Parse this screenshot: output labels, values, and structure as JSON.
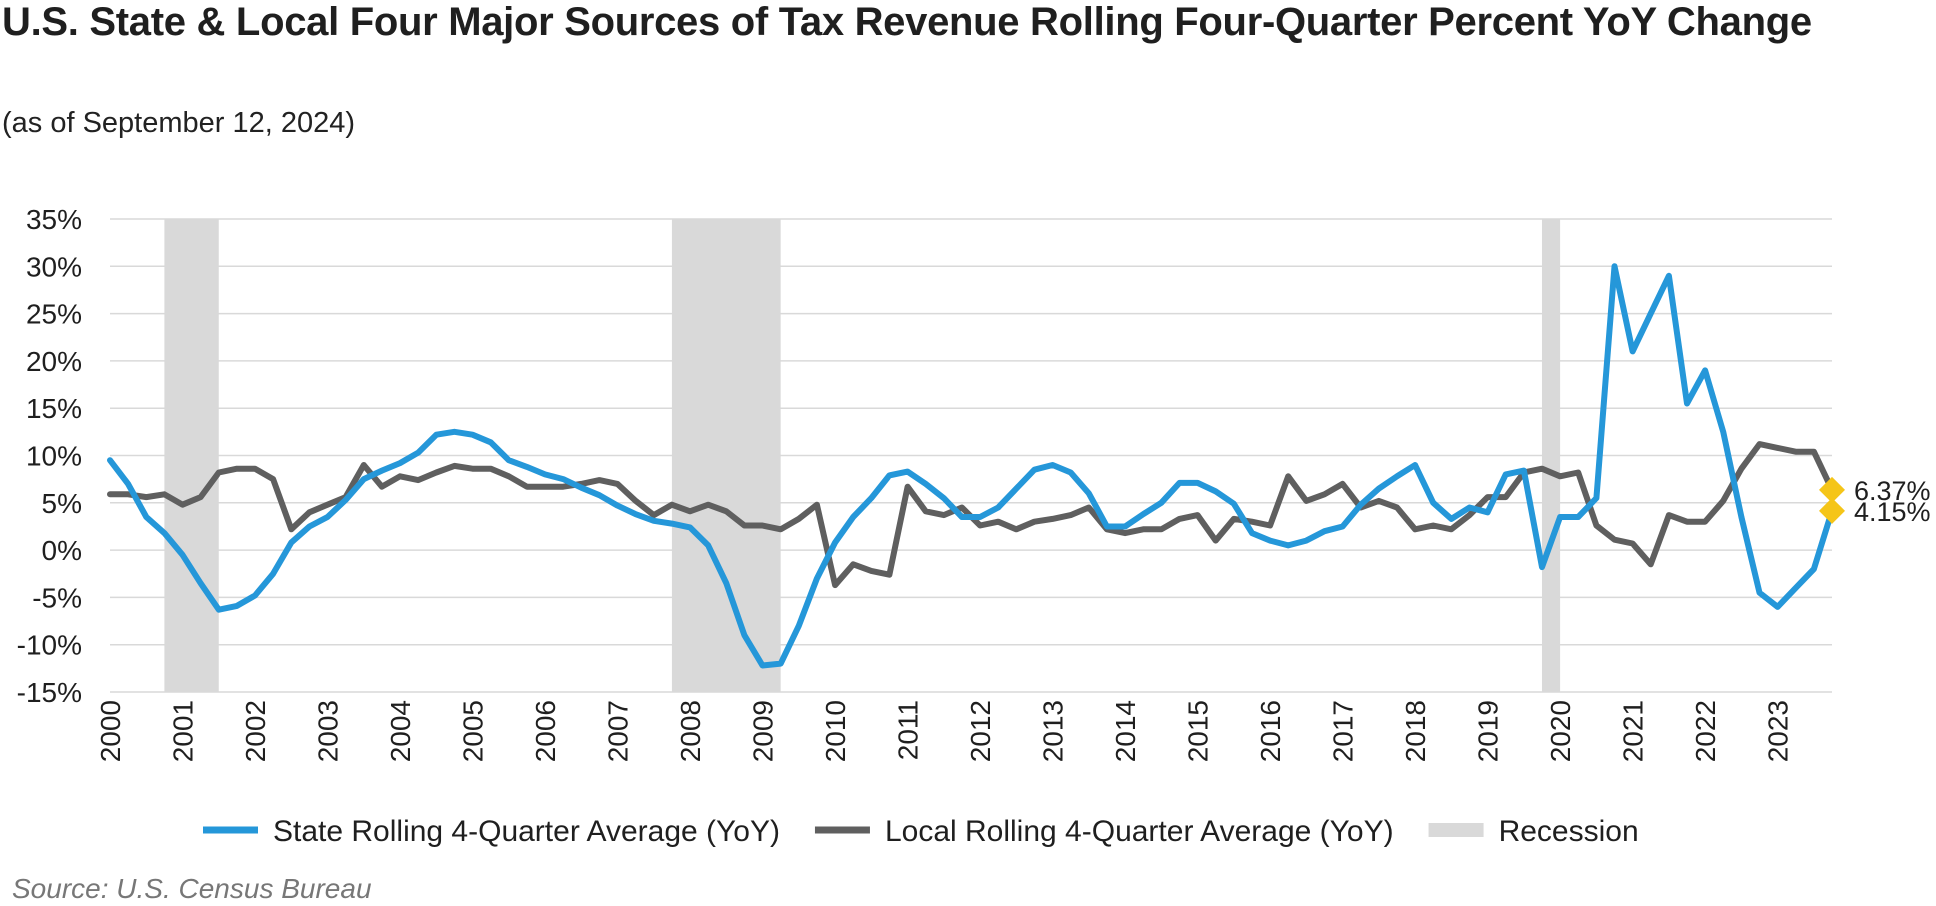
{
  "title": "U.S. State & Local Four Major Sources of Tax Revenue Rolling Four-Quarter Percent YoY Change",
  "subtitle": "(as of September 12, 2024)",
  "source": "Source: U.S. Census Bureau",
  "colors": {
    "state": "#2597d9",
    "local": "#5f5f5f",
    "recession": "#d9d9d9",
    "marker": "#f5c518",
    "grid": "#d9d9d9"
  },
  "chart_data": {
    "type": "line",
    "x_axis_type": "year",
    "xlim": [
      2000,
      2023.75
    ],
    "ylim": [
      -15,
      35
    ],
    "y_ticks": [
      35,
      30,
      25,
      20,
      15,
      10,
      5,
      0,
      -5,
      -10,
      -15
    ],
    "y_tick_labels": [
      "35%",
      "30%",
      "25%",
      "20%",
      "15%",
      "10%",
      "5%",
      "0%",
      "-5%",
      "-10%",
      "-15%"
    ],
    "x_tick_labels": [
      "2000",
      "2001",
      "2002",
      "2003",
      "2004",
      "2005",
      "2006",
      "2007",
      "2008",
      "2009",
      "2010",
      "2011",
      "2012",
      "2013",
      "2014",
      "2015",
      "2016",
      "2017",
      "2018",
      "2019",
      "2020",
      "2021",
      "2022",
      "2023"
    ],
    "grid": true,
    "legend_position": "bottom",
    "recessions": [
      {
        "start": 2000.75,
        "end": 2001.5
      },
      {
        "start": 2007.75,
        "end": 2009.25
      },
      {
        "start": 2019.75,
        "end": 2020.0
      }
    ],
    "series": [
      {
        "name": "State Rolling 4-Quarter Average (YoY)",
        "color": "#2597d9",
        "points": [
          [
            2000.0,
            9.5
          ],
          [
            2000.25,
            7.0
          ],
          [
            2000.5,
            3.5
          ],
          [
            2000.75,
            1.8
          ],
          [
            2001.0,
            -0.5
          ],
          [
            2001.25,
            -3.5
          ],
          [
            2001.5,
            -6.3
          ],
          [
            2001.75,
            -5.9
          ],
          [
            2002.0,
            -4.8
          ],
          [
            2002.25,
            -2.5
          ],
          [
            2002.5,
            0.8
          ],
          [
            2002.75,
            2.5
          ],
          [
            2003.0,
            3.5
          ],
          [
            2003.25,
            5.3
          ],
          [
            2003.5,
            7.5
          ],
          [
            2003.75,
            8.4
          ],
          [
            2004.0,
            9.2
          ],
          [
            2004.25,
            10.3
          ],
          [
            2004.5,
            12.2
          ],
          [
            2004.75,
            12.5
          ],
          [
            2005.0,
            12.2
          ],
          [
            2005.25,
            11.4
          ],
          [
            2005.5,
            9.5
          ],
          [
            2005.75,
            8.8
          ],
          [
            2006.0,
            8.0
          ],
          [
            2006.25,
            7.5
          ],
          [
            2006.5,
            6.6
          ],
          [
            2006.75,
            5.8
          ],
          [
            2007.0,
            4.7
          ],
          [
            2007.25,
            3.8
          ],
          [
            2007.5,
            3.1
          ],
          [
            2007.75,
            2.8
          ],
          [
            2008.0,
            2.4
          ],
          [
            2008.25,
            0.5
          ],
          [
            2008.5,
            -3.5
          ],
          [
            2008.75,
            -9.0
          ],
          [
            2009.0,
            -12.2
          ],
          [
            2009.25,
            -12.0
          ],
          [
            2009.5,
            -8.0
          ],
          [
            2009.75,
            -3.0
          ],
          [
            2010.0,
            0.8
          ],
          [
            2010.25,
            3.5
          ],
          [
            2010.5,
            5.5
          ],
          [
            2010.75,
            7.9
          ],
          [
            2011.0,
            8.3
          ],
          [
            2011.25,
            7.0
          ],
          [
            2011.5,
            5.5
          ],
          [
            2011.75,
            3.5
          ],
          [
            2012.0,
            3.5
          ],
          [
            2012.25,
            4.5
          ],
          [
            2012.5,
            6.5
          ],
          [
            2012.75,
            8.5
          ],
          [
            2013.0,
            9.0
          ],
          [
            2013.25,
            8.2
          ],
          [
            2013.5,
            6.0
          ],
          [
            2013.75,
            2.5
          ],
          [
            2014.0,
            2.5
          ],
          [
            2014.25,
            3.8
          ],
          [
            2014.5,
            5.0
          ],
          [
            2014.75,
            7.1
          ],
          [
            2015.0,
            7.1
          ],
          [
            2015.25,
            6.2
          ],
          [
            2015.5,
            4.9
          ],
          [
            2015.75,
            1.8
          ],
          [
            2016.0,
            1.0
          ],
          [
            2016.25,
            0.5
          ],
          [
            2016.5,
            1.0
          ],
          [
            2016.75,
            2.0
          ],
          [
            2017.0,
            2.5
          ],
          [
            2017.25,
            4.8
          ],
          [
            2017.5,
            6.5
          ],
          [
            2017.75,
            7.8
          ],
          [
            2018.0,
            9.0
          ],
          [
            2018.25,
            5.0
          ],
          [
            2018.5,
            3.3
          ],
          [
            2018.75,
            4.5
          ],
          [
            2019.0,
            4.0
          ],
          [
            2019.25,
            8.0
          ],
          [
            2019.5,
            8.4
          ],
          [
            2019.75,
            -1.8
          ],
          [
            2020.0,
            3.5
          ],
          [
            2020.25,
            3.5
          ],
          [
            2020.5,
            5.5
          ],
          [
            2020.75,
            30.0
          ],
          [
            2021.0,
            21.0
          ],
          [
            2021.25,
            25.0
          ],
          [
            2021.5,
            29.0
          ],
          [
            2021.75,
            15.5
          ],
          [
            2022.0,
            19.0
          ],
          [
            2022.25,
            12.5
          ],
          [
            2022.5,
            3.5
          ],
          [
            2022.75,
            -4.5
          ],
          [
            2023.0,
            -6.0
          ],
          [
            2023.25,
            -4.0
          ],
          [
            2023.5,
            -2.0
          ],
          [
            2023.75,
            4.15
          ]
        ],
        "end_label": "4.15%"
      },
      {
        "name": "Local Rolling 4-Quarter Average (YoY)",
        "color": "#5f5f5f",
        "points": [
          [
            2000.0,
            5.9
          ],
          [
            2000.25,
            5.9
          ],
          [
            2000.5,
            5.6
          ],
          [
            2000.75,
            5.9
          ],
          [
            2001.0,
            4.8
          ],
          [
            2001.25,
            5.6
          ],
          [
            2001.5,
            8.2
          ],
          [
            2001.75,
            8.6
          ],
          [
            2002.0,
            8.6
          ],
          [
            2002.25,
            7.5
          ],
          [
            2002.5,
            2.2
          ],
          [
            2002.75,
            4.0
          ],
          [
            2003.0,
            4.8
          ],
          [
            2003.25,
            5.6
          ],
          [
            2003.5,
            9.0
          ],
          [
            2003.75,
            6.7
          ],
          [
            2004.0,
            7.8
          ],
          [
            2004.25,
            7.4
          ],
          [
            2004.5,
            8.2
          ],
          [
            2004.75,
            8.9
          ],
          [
            2005.0,
            8.6
          ],
          [
            2005.25,
            8.6
          ],
          [
            2005.5,
            7.8
          ],
          [
            2005.75,
            6.7
          ],
          [
            2006.0,
            6.7
          ],
          [
            2006.25,
            6.7
          ],
          [
            2006.5,
            7.0
          ],
          [
            2006.75,
            7.4
          ],
          [
            2007.0,
            7.0
          ],
          [
            2007.25,
            5.2
          ],
          [
            2007.5,
            3.7
          ],
          [
            2007.75,
            4.8
          ],
          [
            2008.0,
            4.1
          ],
          [
            2008.25,
            4.8
          ],
          [
            2008.5,
            4.1
          ],
          [
            2008.75,
            2.6
          ],
          [
            2009.0,
            2.6
          ],
          [
            2009.25,
            2.2
          ],
          [
            2009.5,
            3.3
          ],
          [
            2009.75,
            4.8
          ],
          [
            2010.0,
            -3.7
          ],
          [
            2010.25,
            -1.5
          ],
          [
            2010.5,
            -2.2
          ],
          [
            2010.75,
            -2.6
          ],
          [
            2011.0,
            6.7
          ],
          [
            2011.25,
            4.1
          ],
          [
            2011.5,
            3.7
          ],
          [
            2011.75,
            4.5
          ],
          [
            2012.0,
            2.6
          ],
          [
            2012.25,
            3.0
          ],
          [
            2012.5,
            2.2
          ],
          [
            2012.75,
            3.0
          ],
          [
            2013.0,
            3.3
          ],
          [
            2013.25,
            3.7
          ],
          [
            2013.5,
            4.5
          ],
          [
            2013.75,
            2.2
          ],
          [
            2014.0,
            1.8
          ],
          [
            2014.25,
            2.2
          ],
          [
            2014.5,
            2.2
          ],
          [
            2014.75,
            3.3
          ],
          [
            2015.0,
            3.7
          ],
          [
            2015.25,
            1.0
          ],
          [
            2015.5,
            3.3
          ],
          [
            2015.75,
            3.0
          ],
          [
            2016.0,
            2.6
          ],
          [
            2016.25,
            7.8
          ],
          [
            2016.5,
            5.2
          ],
          [
            2016.75,
            5.9
          ],
          [
            2017.0,
            7.0
          ],
          [
            2017.25,
            4.5
          ],
          [
            2017.5,
            5.2
          ],
          [
            2017.75,
            4.5
          ],
          [
            2018.0,
            2.2
          ],
          [
            2018.25,
            2.6
          ],
          [
            2018.5,
            2.2
          ],
          [
            2018.75,
            3.7
          ],
          [
            2019.0,
            5.6
          ],
          [
            2019.25,
            5.6
          ],
          [
            2019.5,
            8.2
          ],
          [
            2019.75,
            8.6
          ],
          [
            2020.0,
            7.8
          ],
          [
            2020.25,
            8.2
          ],
          [
            2020.5,
            2.6
          ],
          [
            2020.75,
            1.1
          ],
          [
            2021.0,
            0.7
          ],
          [
            2021.25,
            -1.5
          ],
          [
            2021.5,
            3.7
          ],
          [
            2021.75,
            3.0
          ],
          [
            2022.0,
            3.0
          ],
          [
            2022.25,
            5.2
          ],
          [
            2022.5,
            8.6
          ],
          [
            2022.75,
            11.2
          ],
          [
            2023.0,
            10.8
          ],
          [
            2023.25,
            10.4
          ],
          [
            2023.5,
            10.4
          ],
          [
            2023.75,
            6.37
          ]
        ],
        "end_label": "6.37%"
      }
    ],
    "legend": [
      {
        "label": "State Rolling 4-Quarter Average (YoY)",
        "kind": "line",
        "color": "#2597d9"
      },
      {
        "label": "Local Rolling 4-Quarter Average (YoY)",
        "kind": "line",
        "color": "#5f5f5f"
      },
      {
        "label": "Recession",
        "kind": "band",
        "color": "#d9d9d9"
      }
    ]
  }
}
